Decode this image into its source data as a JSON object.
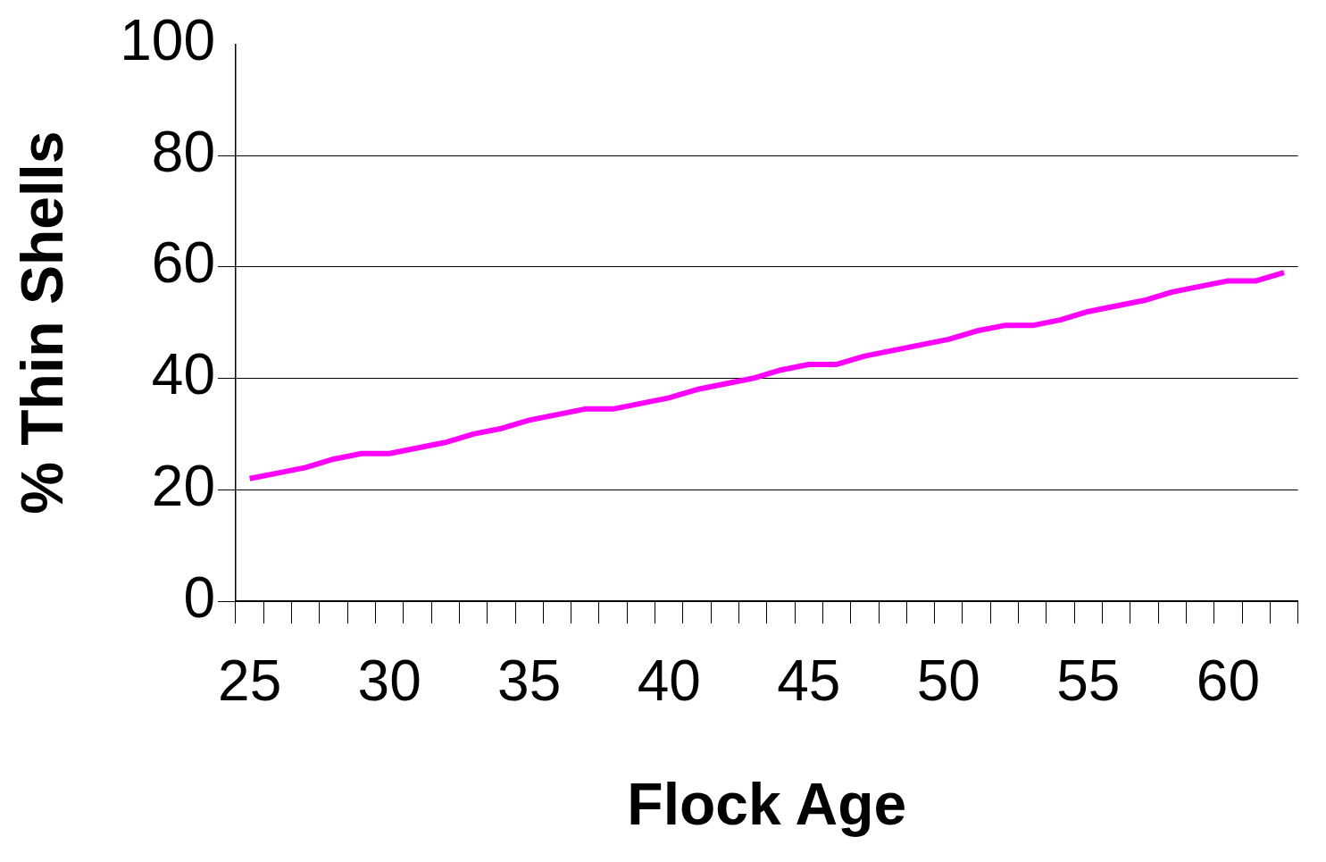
{
  "chart_data": {
    "type": "line",
    "xlabel": "Flock Age",
    "ylabel": "% Thin Shells",
    "categories": [
      "25",
      null,
      null,
      null,
      null,
      "30",
      null,
      null,
      null,
      null,
      "35",
      null,
      null,
      null,
      null,
      "40",
      null,
      null,
      null,
      null,
      "45",
      null,
      null,
      null,
      null,
      "50",
      null,
      null,
      null,
      null,
      "55",
      null,
      null,
      null,
      null,
      "60",
      null,
      null
    ],
    "series": [
      {
        "color": "#ff00ff",
        "values": [
          22,
          23,
          24,
          25.5,
          26.5,
          26.5,
          27.5,
          28.5,
          30,
          31,
          32.5,
          33.5,
          34.5,
          34.5,
          35.5,
          36.5,
          38,
          39,
          40,
          41.5,
          42.5,
          42.5,
          44,
          45,
          46,
          47,
          48.5,
          49.5,
          49.5,
          50.5,
          52,
          53,
          54,
          55.5,
          56.5,
          57.5,
          57.5,
          59
        ]
      }
    ],
    "ylim": [
      0,
      100
    ],
    "yticks": [
      0,
      20,
      40,
      60,
      80,
      100
    ],
    "grid": "y",
    "legend": false,
    "marker": "none",
    "line_style": "solid"
  }
}
